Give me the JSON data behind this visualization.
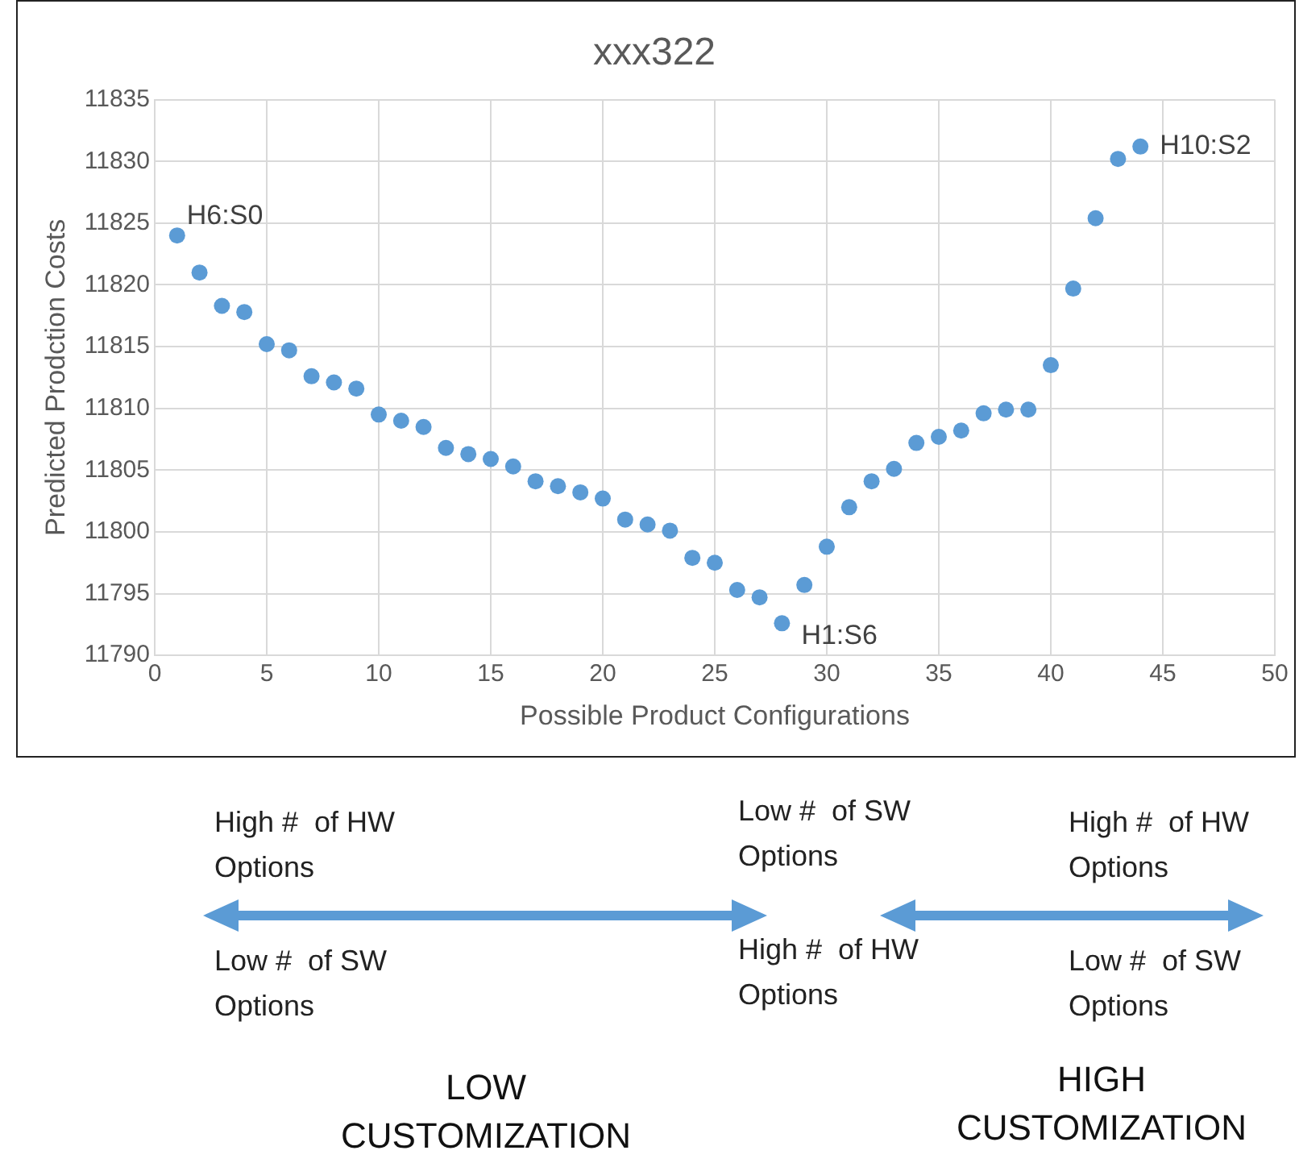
{
  "chart_data": {
    "type": "scatter",
    "title": "xxx322",
    "xlabel": "Possible Product Configurations",
    "ylabel": "Predicted Prodction Costs",
    "x": [
      1,
      2,
      3,
      4,
      5,
      6,
      7,
      8,
      9,
      10,
      11,
      12,
      13,
      14,
      15,
      16,
      17,
      18,
      19,
      20,
      21,
      22,
      23,
      24,
      25,
      26,
      27,
      28,
      29,
      30,
      31,
      32,
      33,
      34,
      35,
      36,
      37,
      38,
      39,
      40,
      41,
      42,
      43,
      44
    ],
    "series": [
      {
        "color": "#5b9bd5",
        "values": [
          11824,
          11821,
          11818.3,
          11817.8,
          11815.2,
          11814.7,
          11812.6,
          11812.1,
          11811.6,
          11809.5,
          11809,
          11808.5,
          11806.8,
          11806.3,
          11805.9,
          11805.3,
          11804.1,
          11803.7,
          11803.2,
          11802.7,
          11801,
          11800.6,
          11800.1,
          11797.9,
          11797.5,
          11795.3,
          11794.7,
          11792.6,
          11795.7,
          11798.8,
          11802,
          11804.1,
          11805.1,
          11807.2,
          11807.7,
          11808.2,
          11809.6,
          11809.9,
          11809.9,
          11813.5,
          11819.7,
          11825.4,
          11830.2,
          11831.2
        ]
      }
    ],
    "xlim": [
      0,
      50
    ],
    "xticks": [
      0,
      5,
      10,
      15,
      20,
      25,
      30,
      35,
      40,
      45,
      50
    ],
    "ylim": [
      11790,
      11835
    ],
    "yticks": [
      11790,
      11795,
      11800,
      11805,
      11810,
      11815,
      11820,
      11825,
      11830,
      11835
    ],
    "grid": true,
    "legend": false,
    "marker": "circle",
    "annotations": [
      {
        "text": "H6:S0",
        "x": 1,
        "y": 11824
      },
      {
        "text": "H1:S6",
        "x": 28,
        "y": 11792.6
      },
      {
        "text": "H10:S2",
        "x": 44,
        "y": 11831.2
      },
      "High #  of HW Options",
      "Low #  of SW Options",
      "Low #  of SW Options",
      "High #  of HW Options",
      "High #  of HW Options",
      "Low #  of SW Options",
      "LOW CUSTOMIZATION",
      "HIGH CUSTOMIZATION"
    ]
  }
}
